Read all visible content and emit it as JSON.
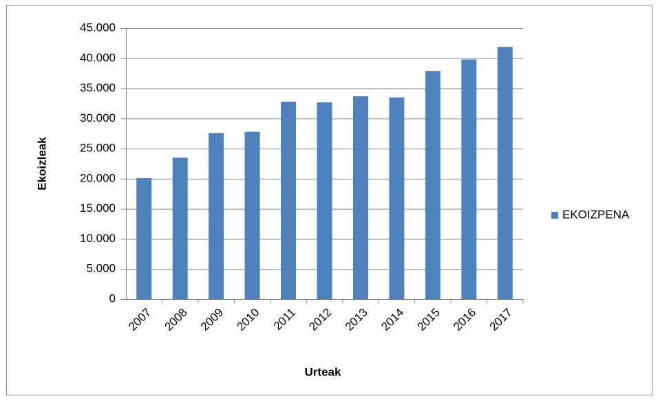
{
  "chart_data": {
    "type": "bar",
    "x_label": "Urteak",
    "y_label": "Ekoizleak",
    "categories": [
      "2007",
      "2008",
      "2009",
      "2010",
      "2011",
      "2012",
      "2013",
      "2014",
      "2015",
      "2016",
      "2017"
    ],
    "series": [
      {
        "name": "EKOIZPENA",
        "color": "#4f81bd",
        "values": [
          20100,
          23500,
          27600,
          27800,
          32800,
          32700,
          33700,
          33500,
          37900,
          39800,
          41900
        ]
      }
    ],
    "ylim": [
      0,
      45000
    ],
    "yticks": [
      0,
      {
        "value": 5000,
        "label": "5.000"
      },
      {
        "value": 10000,
        "label": "10.000"
      },
      {
        "value": 15000,
        "label": "15.000"
      },
      {
        "value": 20000,
        "label": "20.000"
      },
      {
        "value": 25000,
        "label": "25.000"
      },
      {
        "value": 30000,
        "label": "30.000"
      },
      {
        "value": 35000,
        "label": "35.000"
      },
      {
        "value": 40000,
        "label": "40.000"
      },
      {
        "value": 45000,
        "label": "45.000"
      }
    ],
    "grid": true,
    "legend": "right"
  }
}
